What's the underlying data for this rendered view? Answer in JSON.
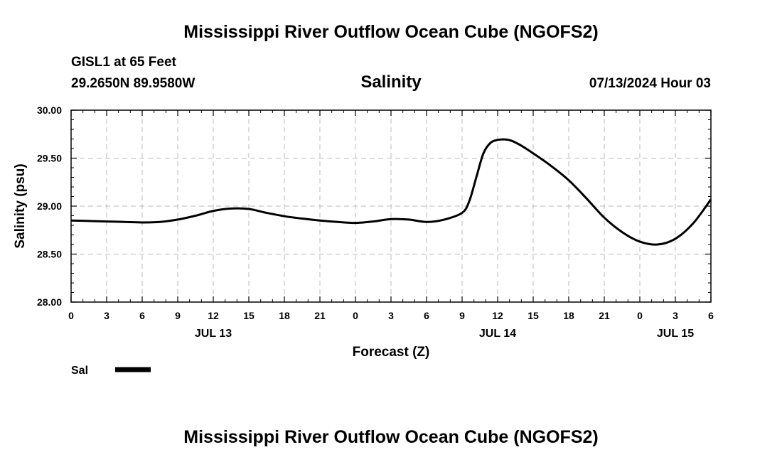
{
  "header": {
    "title": "Mississippi River Outflow Ocean Cube (NGOFS2)",
    "station": "GISL1 at 65 Feet",
    "coords": "29.2650N  89.9580W",
    "datetime": "07/13/2024 Hour 03",
    "footer_title": "Mississippi River Outflow Ocean Cube (NGOFS2)"
  },
  "colors": {
    "line": "#000000",
    "grid": "#bbbbbb",
    "background": "#ffffff"
  },
  "chart_data": {
    "type": "line",
    "title": "Salinity",
    "xlabel": "Forecast (Z)",
    "ylabel": "Salinity (psu)",
    "xlim": [
      0,
      54
    ],
    "ylim": [
      28.0,
      30.0
    ],
    "grid": true,
    "x_ticks": [
      0,
      3,
      6,
      9,
      12,
      15,
      18,
      21,
      24,
      27,
      30,
      33,
      36,
      39,
      42,
      45,
      48,
      51,
      54
    ],
    "x_tick_labels": [
      "0",
      "3",
      "6",
      "9",
      "12",
      "15",
      "18",
      "21",
      "0",
      "3",
      "6",
      "9",
      "12",
      "15",
      "18",
      "21",
      "0",
      "3",
      "6"
    ],
    "y_ticks": [
      28.0,
      28.5,
      29.0,
      29.5,
      30.0
    ],
    "y_tick_labels": [
      "28.00",
      "28.50",
      "29.00",
      "29.50",
      "30.00"
    ],
    "day_labels": [
      {
        "text": "JUL 13",
        "x": 12
      },
      {
        "text": "JUL 14",
        "x": 36
      },
      {
        "text": "JUL 15",
        "x": 51
      }
    ],
    "legend_position": "bottom-left",
    "series": [
      {
        "name": "Sal",
        "x": [
          0,
          1.5,
          3,
          4.5,
          6,
          7.5,
          9,
          10.5,
          12,
          13.5,
          15,
          16.5,
          18,
          19.5,
          21,
          22.5,
          24,
          25.5,
          27,
          28.5,
          30,
          31.5,
          33,
          33.6,
          34.2,
          34.8,
          35.4,
          36,
          36.6,
          37.2,
          38,
          39,
          40.5,
          42,
          43.5,
          45,
          46.5,
          48,
          49.5,
          51,
          52.5,
          54
        ],
        "values": [
          28.85,
          28.845,
          28.84,
          28.835,
          28.83,
          28.835,
          28.86,
          28.9,
          28.95,
          28.975,
          28.97,
          28.93,
          28.895,
          28.87,
          28.85,
          28.835,
          28.825,
          28.84,
          28.865,
          28.86,
          28.835,
          28.86,
          28.93,
          29.05,
          29.3,
          29.55,
          29.66,
          29.69,
          29.695,
          29.68,
          29.63,
          29.55,
          29.42,
          29.27,
          29.08,
          28.88,
          28.73,
          28.63,
          28.6,
          28.66,
          28.82,
          29.07
        ]
      }
    ]
  }
}
